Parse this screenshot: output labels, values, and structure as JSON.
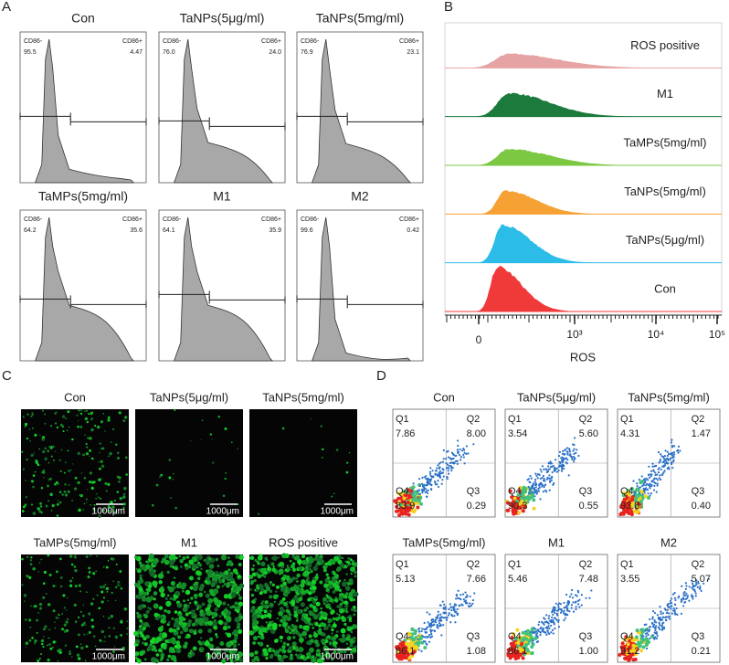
{
  "panel_labels": [
    "A",
    "B",
    "C",
    "D"
  ],
  "panel_a": {
    "plots": [
      {
        "title": "Con",
        "left_label": "CD86-",
        "left_value": "95.5",
        "right_label": "CD86+",
        "right_value": "4.47"
      },
      {
        "title": "TaNPs(5μg/ml)",
        "left_label": "CD86-",
        "left_value": "76.0",
        "right_label": "CD86+",
        "right_value": "24.0"
      },
      {
        "title": "TaNPs(5mg/ml)",
        "left_label": "CD86-",
        "left_value": "76.9",
        "right_label": "CD86+",
        "right_value": "23.1"
      },
      {
        "title": "TaMPs(5mg/ml)",
        "left_label": "CD86-",
        "left_value": "64.2",
        "right_label": "CD86+",
        "right_value": "35.6"
      },
      {
        "title": "M1",
        "left_label": "CD86-",
        "left_value": "64.1",
        "right_label": "CD86+",
        "right_value": "35.9"
      },
      {
        "title": "M2",
        "left_label": "CD86-",
        "left_value": "99.6",
        "right_label": "CD86+",
        "right_value": "0.42"
      }
    ]
  },
  "panel_b": {
    "histograms": [
      {
        "name": "ROS positive",
        "color": "#e6a3a3"
      },
      {
        "name": "M1",
        "color": "#1b7a3c"
      },
      {
        "name": "TaMPs(5mg/ml)",
        "color": "#7cc843"
      },
      {
        "name": "TaNPs(5mg/ml)",
        "color": "#f5a133"
      },
      {
        "name": "TaNPs(5μg/ml)",
        "color": "#2cbce8"
      },
      {
        "name": "Con",
        "color": "#f03a3a"
      }
    ],
    "x_label": "ROS",
    "x_ticks": [
      "0",
      "10³",
      "10⁴",
      "10⁵"
    ]
  },
  "panel_c": {
    "images": [
      {
        "title": "Con",
        "scale": "1000μm"
      },
      {
        "title": "TaNPs(5μg/ml)",
        "scale": "1000μm"
      },
      {
        "title": "TaNPs(5mg/ml)",
        "scale": "1000μm"
      },
      {
        "title": "TaMPs(5mg/ml)",
        "scale": "1000μm"
      },
      {
        "title": "M1",
        "scale": "1000μm"
      },
      {
        "title": "ROS positive",
        "scale": "1000μm"
      }
    ]
  },
  "panel_d": {
    "quadrant_names": [
      "Q1",
      "Q2",
      "Q3",
      "Q4"
    ],
    "plots": [
      {
        "title": "Con",
        "q1": "7.86",
        "q2": "8.00",
        "q3": "0.29",
        "q4": "83.9"
      },
      {
        "title": "TaNPs(5μg/ml)",
        "q1": "3.54",
        "q2": "5.60",
        "q3": "0.55",
        "q4": "90.3"
      },
      {
        "title": "TaNPs(5mg/ml)",
        "q1": "4.31",
        "q2": "1.47",
        "q3": "0.40",
        "q4": "93.8"
      },
      {
        "title": "TaMPs(5mg/ml)",
        "q1": "5.13",
        "q2": "7.66",
        "q3": "1.08",
        "q4": "86.1"
      },
      {
        "title": "M1",
        "q1": "5.46",
        "q2": "7.48",
        "q3": "1.00",
        "q4": "86.1"
      },
      {
        "title": "M2",
        "q1": "3.55",
        "q2": "5.07",
        "q3": "0.21",
        "q4": "91.2"
      }
    ]
  }
}
